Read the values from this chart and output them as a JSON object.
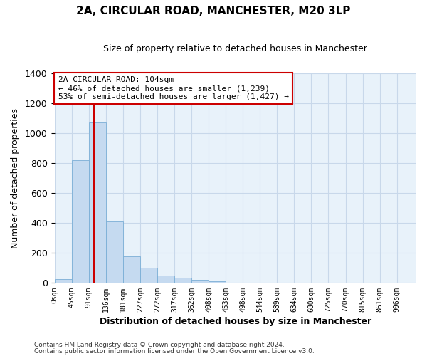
{
  "title": "2A, CIRCULAR ROAD, MANCHESTER, M20 3LP",
  "subtitle": "Size of property relative to detached houses in Manchester",
  "xlabel": "Distribution of detached houses by size in Manchester",
  "ylabel": "Number of detached properties",
  "bar_values": [
    25,
    820,
    1070,
    410,
    180,
    100,
    50,
    35,
    20,
    10,
    0,
    0,
    0,
    0,
    0,
    0,
    0,
    0,
    0,
    0
  ],
  "bin_labels": [
    "0sqm",
    "45sqm",
    "91sqm",
    "136sqm",
    "181sqm",
    "227sqm",
    "272sqm",
    "317sqm",
    "362sqm",
    "408sqm",
    "453sqm",
    "498sqm",
    "544sqm",
    "589sqm",
    "634sqm",
    "680sqm",
    "725sqm",
    "770sqm",
    "815sqm",
    "861sqm",
    "906sqm"
  ],
  "bar_color": "#c5daf0",
  "bar_edge_color": "#7aaed6",
  "grid_color": "#c8d8ea",
  "background_color": "#e8f2fa",
  "vline_x": 104,
  "vline_color": "#cc0000",
  "ylim": [
    0,
    1400
  ],
  "xlim_start": 0,
  "xlim_end": 951,
  "bin_width": 45,
  "annotation_text": "2A CIRCULAR ROAD: 104sqm\n← 46% of detached houses are smaller (1,239)\n53% of semi-detached houses are larger (1,427) →",
  "annotation_box_color": "#ffffff",
  "annotation_box_edge": "#cc0000",
  "footer_line1": "Contains HM Land Registry data © Crown copyright and database right 2024.",
  "footer_line2": "Contains public sector information licensed under the Open Government Licence v3.0."
}
